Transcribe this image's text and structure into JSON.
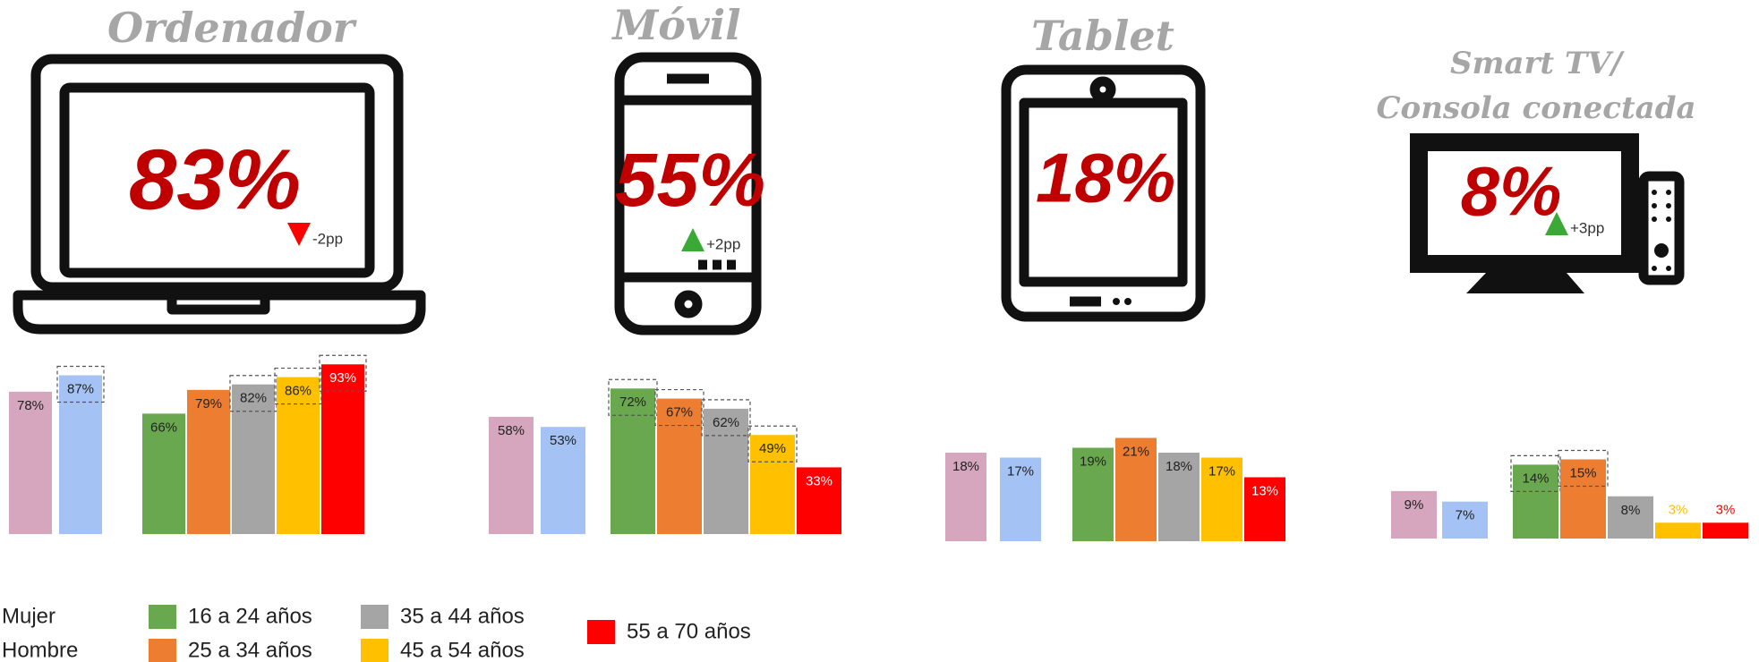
{
  "chart_data": [
    {
      "type": "bar",
      "title": [
        "Ordenador"
      ],
      "headline": {
        "value": 83,
        "label": "83%"
      },
      "change": {
        "value": -2,
        "label": "-2pp"
      },
      "values": [
        78,
        87,
        66,
        79,
        82,
        86,
        93
      ],
      "value_labels": [
        "78%",
        "87%",
        "66%",
        "79%",
        "82%",
        "86%",
        "93%"
      ],
      "highlight": [
        false,
        true,
        false,
        false,
        true,
        true,
        true
      ]
    },
    {
      "type": "bar",
      "title": [
        "Móvil"
      ],
      "headline": {
        "value": 55,
        "label": "55%"
      },
      "change": {
        "value": 2,
        "label": "+2pp"
      },
      "values": [
        58,
        53,
        72,
        67,
        62,
        49,
        33
      ],
      "value_labels": [
        "58%",
        "53%",
        "72%",
        "67%",
        "62%",
        "49%",
        "33%"
      ],
      "highlight": [
        false,
        false,
        true,
        true,
        true,
        true,
        false
      ]
    },
    {
      "type": "bar",
      "title": [
        "Tablet"
      ],
      "headline": {
        "value": 18,
        "label": "18%"
      },
      "values": [
        18,
        17,
        19,
        21,
        18,
        17,
        13
      ],
      "value_labels": [
        "18%",
        "17%",
        "19%",
        "21%",
        "18%",
        "17%",
        "13%"
      ],
      "highlight": [
        false,
        false,
        false,
        false,
        false,
        false,
        false
      ]
    },
    {
      "type": "bar",
      "title": [
        "Smart TV/",
        "Consola conectada"
      ],
      "headline": {
        "value": 8,
        "label": "8%"
      },
      "change": {
        "value": 3,
        "label": "+3pp"
      },
      "values": [
        9,
        7,
        14,
        15,
        8,
        3,
        3
      ],
      "value_labels": [
        "9%",
        "7%",
        "14%",
        "15%",
        "8%",
        "3%",
        "3%"
      ],
      "highlight": [
        false,
        false,
        true,
        true,
        false,
        false,
        false
      ]
    }
  ],
  "legend": [
    {
      "name": "Mujer",
      "color": "#d5a6bd"
    },
    {
      "name": "Hombre",
      "color": "#a4c2f4"
    },
    {
      "name": "16 a 24 años",
      "color": "#6aa84f"
    },
    {
      "name": "25 a 34 años",
      "color": "#ed7d31"
    },
    {
      "name": "35 a 44 años",
      "color": "#a5a5a5"
    },
    {
      "name": "45 a 54 años",
      "color": "#ffc000"
    },
    {
      "name": "55 a 70 años",
      "color": "#ff0000"
    }
  ]
}
